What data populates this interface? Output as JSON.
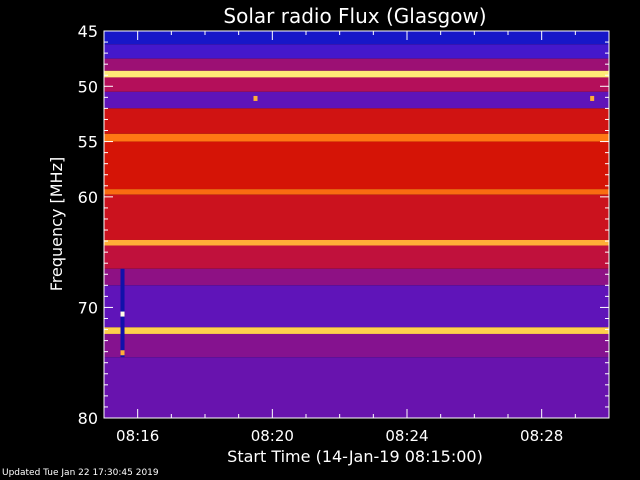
{
  "chart_data": {
    "type": "heatmap",
    "title": "Solar radio Flux (Glasgow)",
    "xlabel": "Start Time (14-Jan-19 08:15:00)",
    "ylabel": "Frequency [MHz]",
    "x_tick_labels": [
      "08:16",
      "08:20",
      "08:24",
      "08:28"
    ],
    "x_tick_minutes": [
      16,
      20,
      24,
      28
    ],
    "xlim_minutes": [
      15.0,
      30.0
    ],
    "y_tick_values": [
      45,
      50,
      55,
      60,
      70,
      80
    ],
    "ylim": [
      45,
      80
    ],
    "y_inverted": true,
    "grid": false,
    "colormap": "blue-purple-red-yellow-white",
    "intensity_bands": [
      {
        "from": 45.0,
        "to": 46.2,
        "level": 0.1
      },
      {
        "from": 46.2,
        "to": 47.5,
        "level": 0.25
      },
      {
        "from": 47.5,
        "to": 48.6,
        "level": 0.45
      },
      {
        "from": 48.6,
        "to": 49.2,
        "level": 0.92
      },
      {
        "from": 49.2,
        "to": 50.5,
        "level": 0.5
      },
      {
        "from": 50.5,
        "to": 52.0,
        "level": 0.32
      },
      {
        "from": 52.0,
        "to": 54.3,
        "level": 0.62
      },
      {
        "from": 54.3,
        "to": 55.0,
        "level": 0.8
      },
      {
        "from": 55.0,
        "to": 59.3,
        "level": 0.64
      },
      {
        "from": 59.3,
        "to": 59.8,
        "level": 0.78
      },
      {
        "from": 59.8,
        "to": 63.9,
        "level": 0.6
      },
      {
        "from": 63.9,
        "to": 64.4,
        "level": 0.85
      },
      {
        "from": 64.4,
        "to": 66.5,
        "level": 0.55
      },
      {
        "from": 66.5,
        "to": 68.0,
        "level": 0.42
      },
      {
        "from": 68.0,
        "to": 71.8,
        "level": 0.32
      },
      {
        "from": 71.8,
        "to": 72.4,
        "level": 0.88
      },
      {
        "from": 72.4,
        "to": 74.5,
        "level": 0.4
      },
      {
        "from": 74.5,
        "to": 80.0,
        "level": 0.34
      }
    ],
    "features": [
      {
        "kind": "burst_column",
        "minute": 15.55,
        "from": 66.5,
        "to": 74.5,
        "level": 0.05
      },
      {
        "kind": "bright_dot",
        "minute": 15.55,
        "freq": 70.6,
        "level": 1.0
      },
      {
        "kind": "bright_dot",
        "minute": 15.55,
        "freq": 74.1,
        "level": 0.85
      },
      {
        "kind": "bright_dot",
        "minute": 19.5,
        "freq": 51.1,
        "level": 0.85
      },
      {
        "kind": "bright_dot",
        "minute": 29.5,
        "freq": 51.1,
        "level": 0.85
      }
    ]
  },
  "footer": {
    "updated": "Updated Tue Jan 22 17:30:45 2019"
  },
  "colors": {
    "background": "#000000",
    "axis": "#ffffff",
    "low": "#1a1acc",
    "mid": "#cc1000",
    "high": "#ffff80"
  }
}
